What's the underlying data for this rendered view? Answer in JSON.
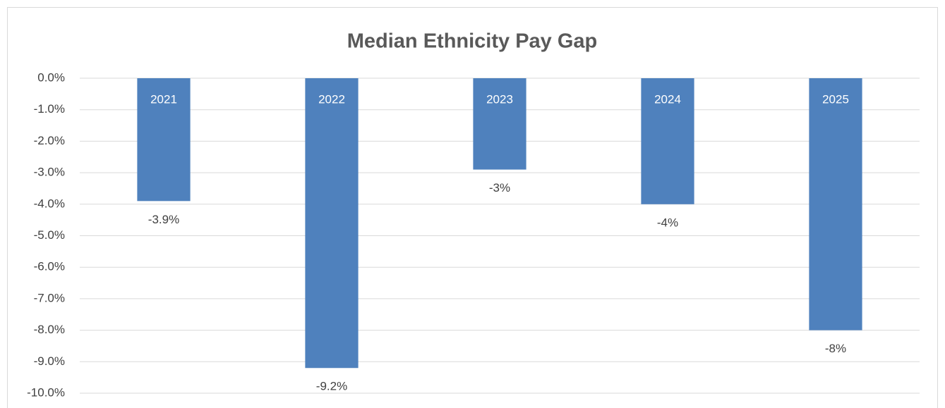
{
  "chart_data": {
    "type": "bar",
    "title": "Median Ethnicity Pay Gap",
    "categories": [
      "2021",
      "2022",
      "2023",
      "2024",
      "2025"
    ],
    "values": [
      -3.9,
      -9.2,
      -2.9,
      -4.0,
      -8.0
    ],
    "value_labels": [
      "-3.9%",
      "-9.2%",
      "-3%",
      "-4%",
      "-8%"
    ],
    "color": "#4f81bd",
    "ylim": [
      -10,
      0
    ],
    "yticks": [
      {
        "value": 0,
        "label": "0.0%"
      },
      {
        "value": -1,
        "label": "-1.0%"
      },
      {
        "value": -2,
        "label": "-2.0%"
      },
      {
        "value": -3,
        "label": "-3.0%"
      },
      {
        "value": -4,
        "label": "-4.0%"
      },
      {
        "value": -5,
        "label": "-5.0%"
      },
      {
        "value": -6,
        "label": "-6.0%"
      },
      {
        "value": -7,
        "label": "-7.0%"
      },
      {
        "value": -8,
        "label": "-8.0%"
      },
      {
        "value": -9,
        "label": "-9.0%"
      },
      {
        "value": -10,
        "label": "-10.0%"
      }
    ],
    "grid": true
  }
}
